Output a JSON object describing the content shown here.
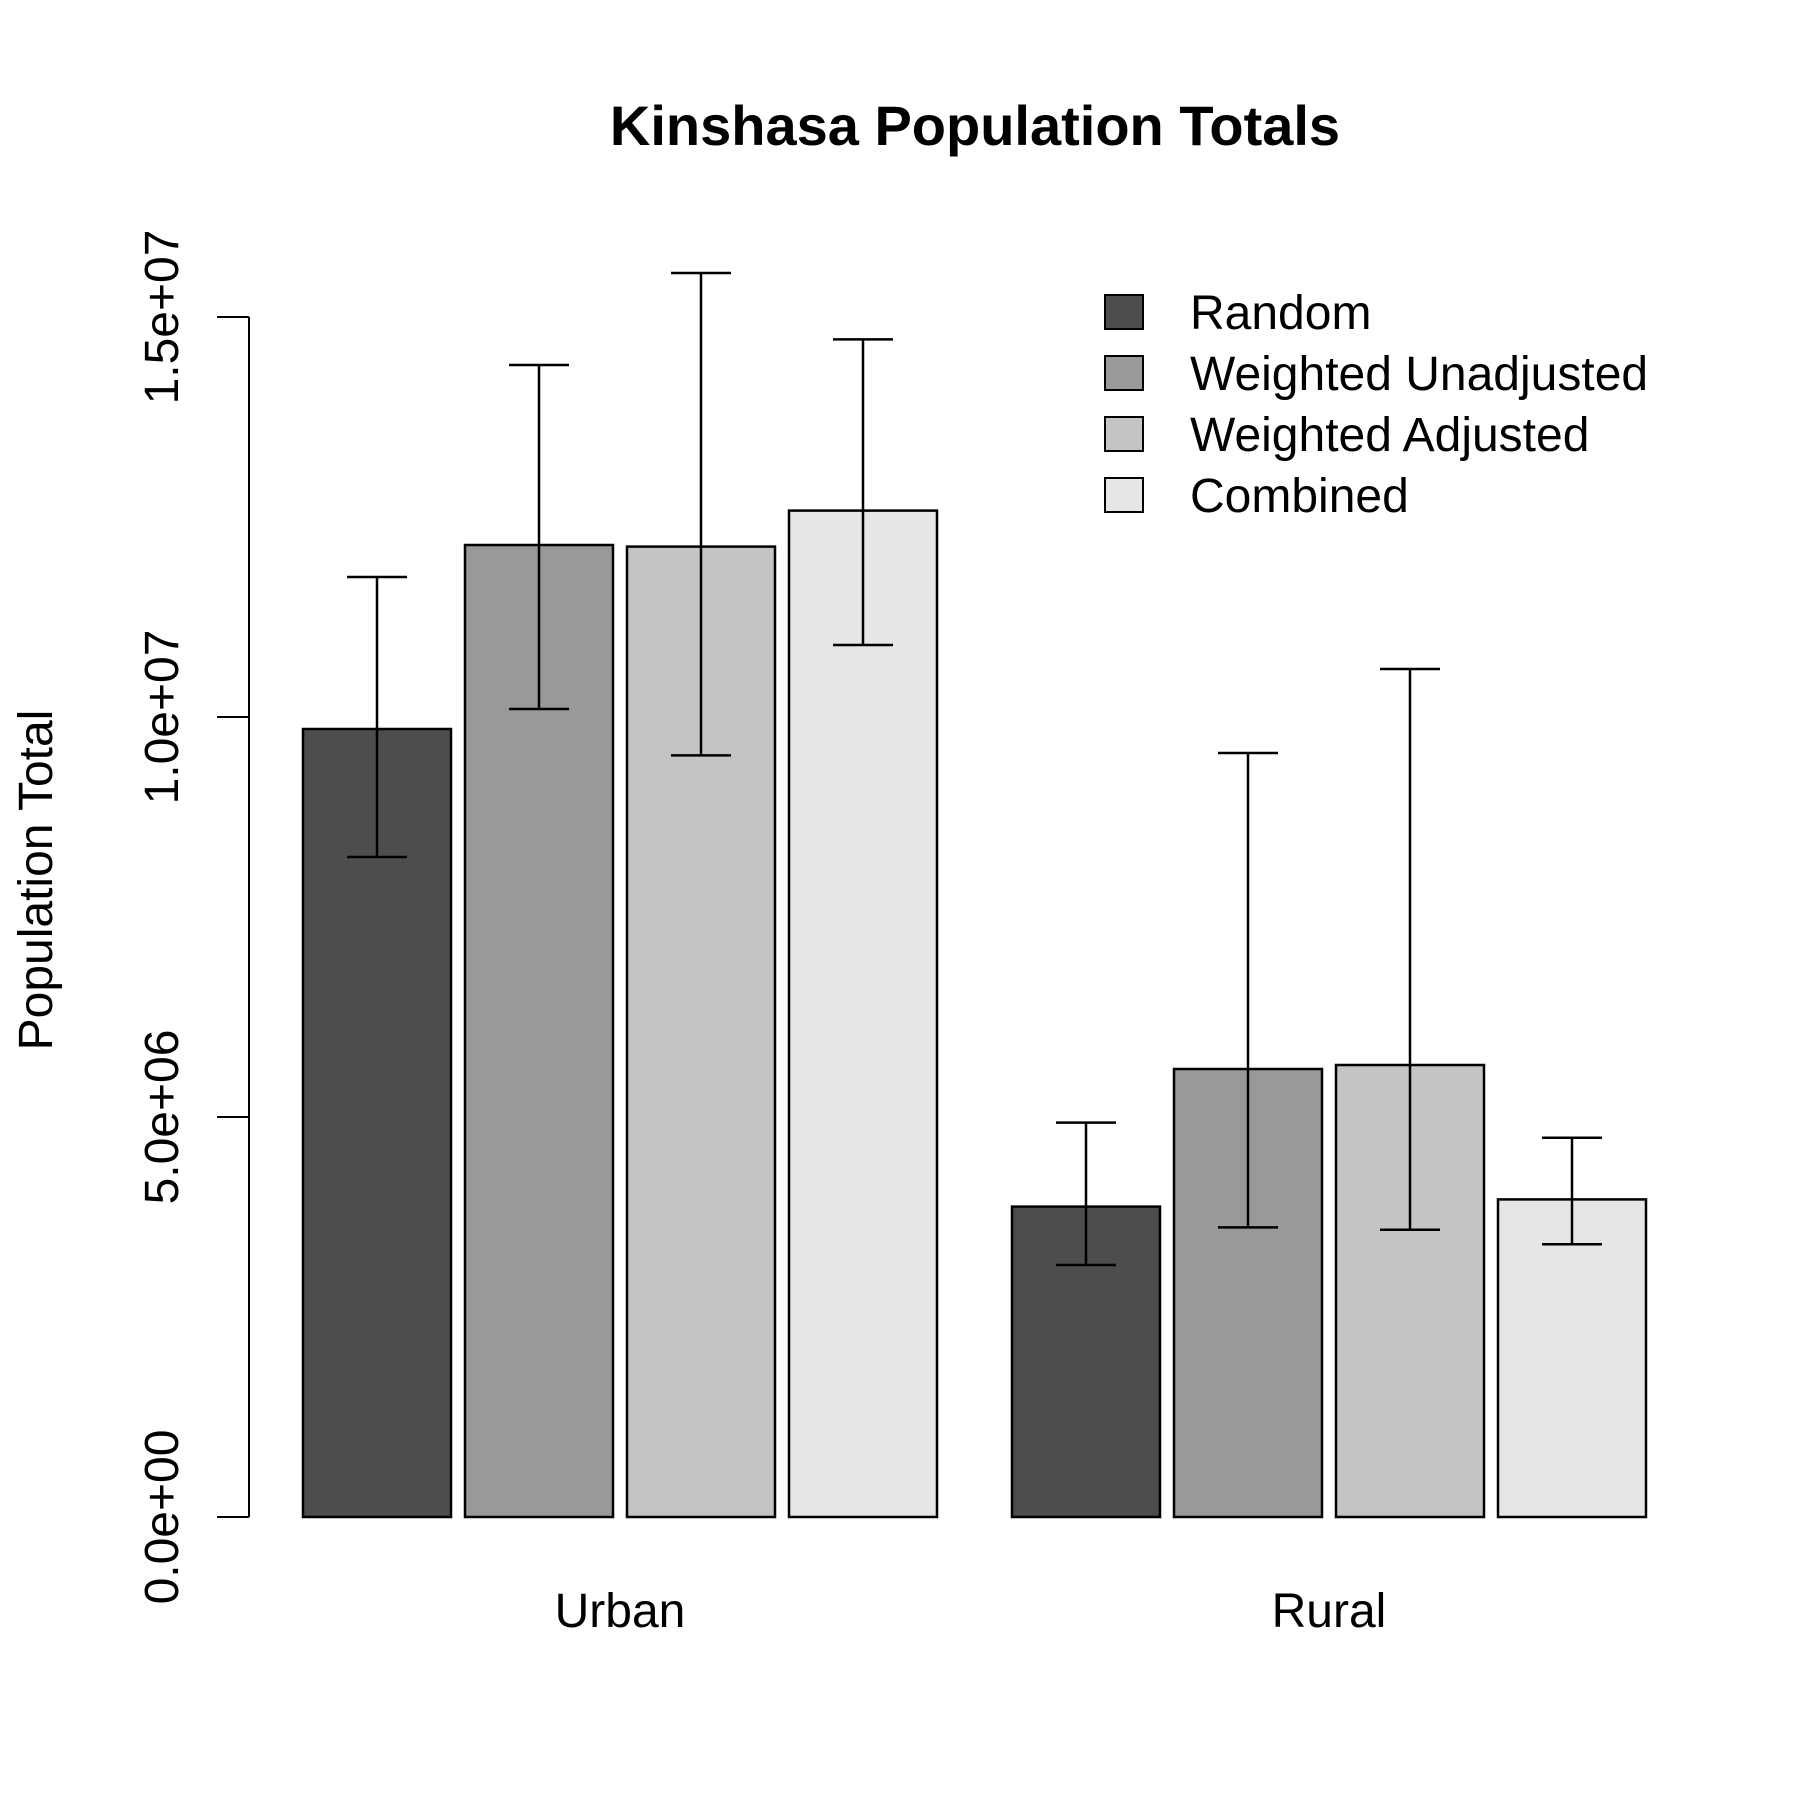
{
  "chart_data": {
    "type": "bar",
    "title": "Kinshasa Population Totals",
    "xlabel": "",
    "ylabel": "Population Total",
    "categories": [
      "Urban",
      "Rural"
    ],
    "ylim": [
      0,
      16000000
    ],
    "y_ticks": [
      0,
      5000000,
      10000000,
      15000000
    ],
    "y_tick_labels": [
      "0.0e+00",
      "5.0e+06",
      "1.0e+07",
      "1.5e+07"
    ],
    "grid": false,
    "legend_position": "top-right",
    "series": [
      {
        "name": "Random",
        "color": "#4d4d4d",
        "values": [
          9850000,
          3880000
        ],
        "lower": [
          8250000,
          3150000
        ],
        "upper": [
          11750000,
          4930000
        ]
      },
      {
        "name": "Weighted Unadjusted",
        "color": "#999999",
        "values": [
          12150000,
          5600000
        ],
        "lower": [
          10100000,
          3620000
        ],
        "upper": [
          14400000,
          9550000
        ]
      },
      {
        "name": "Weighted Adjusted",
        "color": "#c4c4c4",
        "values": [
          12130000,
          5650000
        ],
        "lower": [
          9520000,
          3590000
        ],
        "upper": [
          15550000,
          10600000
        ]
      },
      {
        "name": "Combined",
        "color": "#e6e6e6",
        "values": [
          12580000,
          3970000
        ],
        "lower": [
          10900000,
          3410000
        ],
        "upper": [
          14720000,
          4740000
        ]
      }
    ]
  }
}
